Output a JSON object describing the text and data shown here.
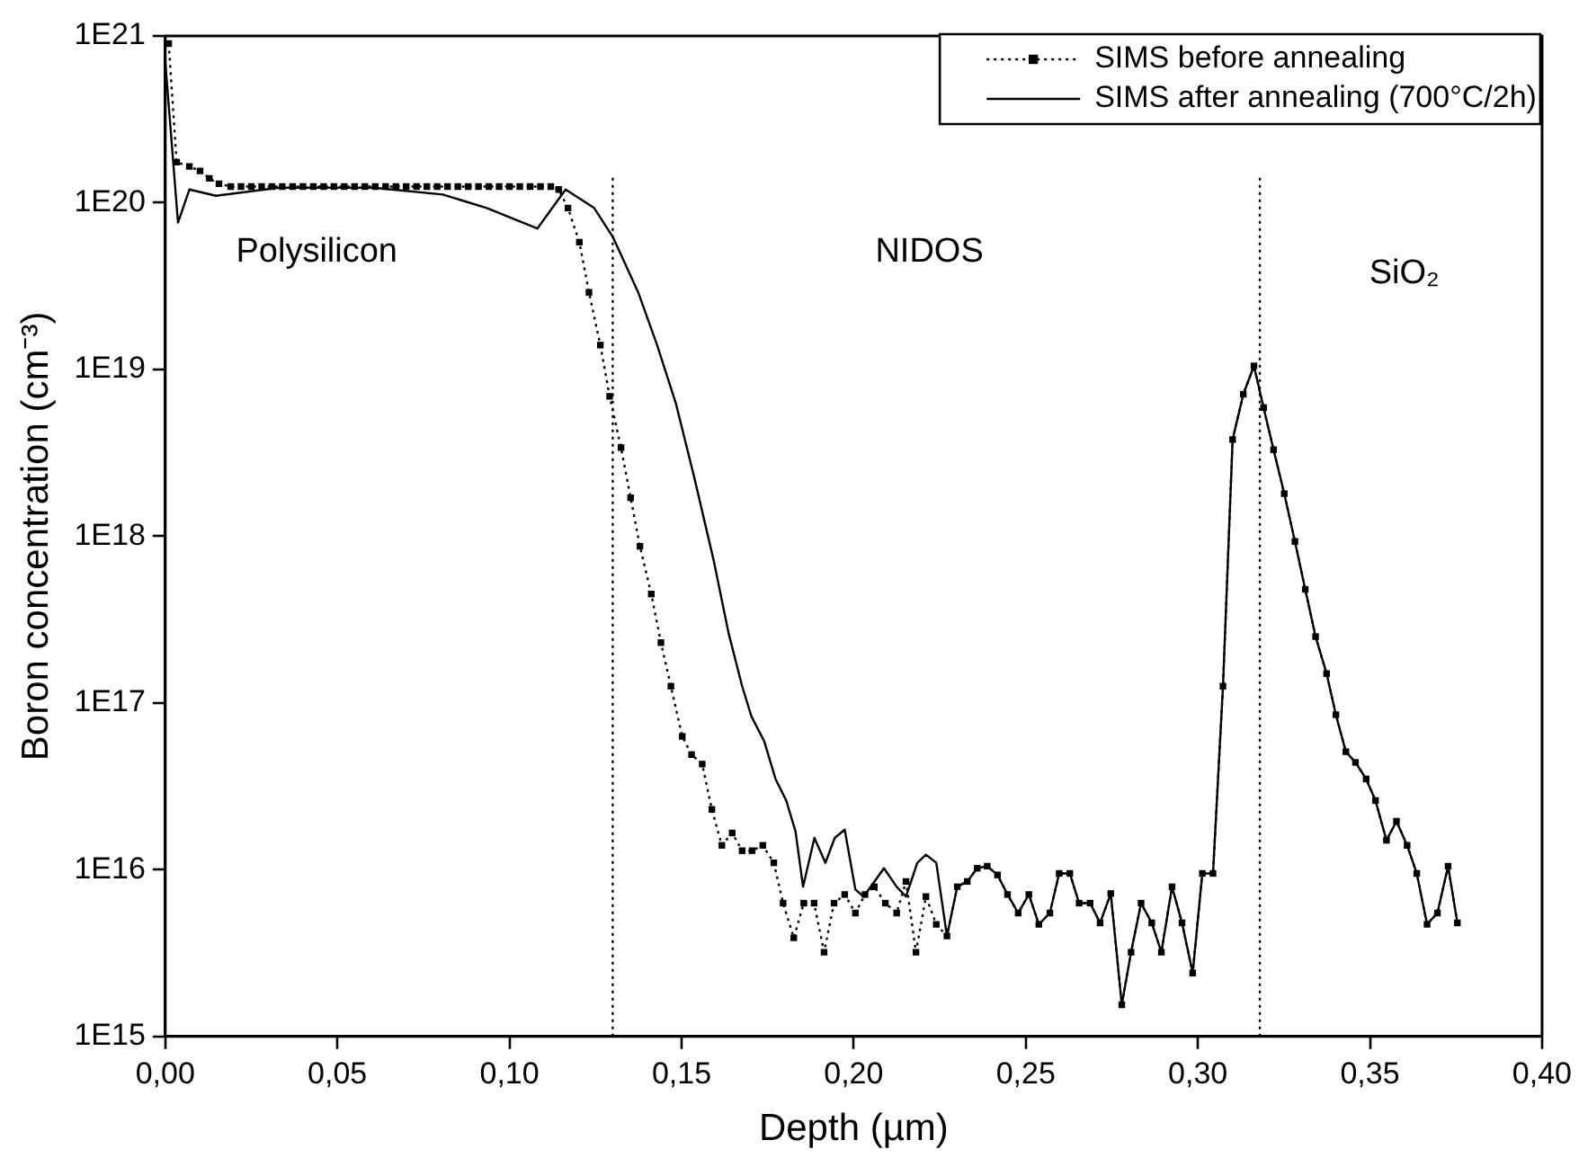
{
  "chart_data": {
    "type": "line",
    "xlabel": "Depth (µm)",
    "ylabel": "Boron concentration (cm⁻³)",
    "log": "y",
    "grid": false,
    "legend": "top right",
    "xlim": [
      0,
      0.4
    ],
    "xticks": [
      {
        "value": 0,
        "label": "0,00"
      },
      {
        "value": 0.05,
        "label": "0,05"
      },
      {
        "value": 0.1,
        "label": "0,10"
      },
      {
        "value": 0.15,
        "label": "0,15"
      },
      {
        "value": 0.2,
        "label": "0,20"
      },
      {
        "value": 0.25,
        "label": "0,25"
      },
      {
        "value": 0.3,
        "label": "0,30"
      },
      {
        "value": 0.35,
        "label": "0,35"
      },
      {
        "value": 0.4,
        "label": "0,40"
      }
    ],
    "ylim": [
      1000000000000000.0,
      1e+21
    ],
    "yticks": [
      {
        "value": 1000000000000000.0,
        "label": "1E15"
      },
      {
        "value": 1e+16,
        "label": "1E16"
      },
      {
        "value": 1e+17,
        "label": "1E17"
      },
      {
        "value": 1e+18,
        "label": "1E18"
      },
      {
        "value": 1e+19,
        "label": "1E19"
      },
      {
        "value": 1e+20,
        "label": "1E20"
      },
      {
        "value": 1e+21,
        "label": "1E21"
      }
    ],
    "ref_lines": [
      {
        "axis": "x",
        "value": 0.13,
        "line_style": "dotted",
        "color": "#000000"
      },
      {
        "axis": "x",
        "value": 0.318,
        "line_style": "dotted",
        "color": "#000000"
      }
    ],
    "annotations": [
      "Polysilicon",
      "NIDOS",
      "SiO₂"
    ],
    "series": [
      {
        "name": "SIMS before annealing",
        "color": "#000000",
        "marker": "square",
        "line_style": "dotted",
        "x": [
          0.001,
          0.0033,
          0.007,
          0.0101,
          0.0128,
          0.0156,
          0.019,
          0.022,
          0.025,
          0.028,
          0.031,
          0.034,
          0.037,
          0.04,
          0.043,
          0.046,
          0.049,
          0.052,
          0.055,
          0.058,
          0.061,
          0.064,
          0.067,
          0.07,
          0.073,
          0.076,
          0.079,
          0.082,
          0.085,
          0.088,
          0.091,
          0.094,
          0.097,
          0.1,
          0.103,
          0.106,
          0.109,
          0.112,
          0.1143,
          0.117,
          0.1203,
          0.1231,
          0.1264,
          0.1291,
          0.1324,
          0.1352,
          0.1379,
          0.1412,
          0.144,
          0.1469,
          0.1502,
          0.1529,
          0.156,
          0.1588,
          0.1617,
          0.1647,
          0.1676,
          0.1705,
          0.1736,
          0.1768,
          0.1795,
          0.1826,
          0.1855,
          0.1885,
          0.1914,
          0.1943,
          0.1974,
          0.2005,
          0.2033,
          0.206,
          0.2092,
          0.2125,
          0.2152,
          0.2181,
          0.221,
          0.224,
          0.2271,
          0.2301,
          0.233,
          0.2359,
          0.2388,
          0.2418,
          0.2447,
          0.2478,
          0.2509,
          0.2538,
          0.257,
          0.2597,
          0.2628,
          0.2655,
          0.2687,
          0.2716,
          0.2747,
          0.2779,
          0.2806,
          0.2835,
          0.2866,
          0.2894,
          0.2925,
          0.2954,
          0.2985,
          0.3013,
          0.3044,
          0.3073,
          0.3101,
          0.3132,
          0.3163,
          0.3191,
          0.322,
          0.3251,
          0.3282,
          0.3312,
          0.3342,
          0.3374,
          0.3401,
          0.343,
          0.3458,
          0.3489,
          0.3516,
          0.3548,
          0.3577,
          0.3608,
          0.3636,
          0.3666,
          0.3696,
          0.3727,
          0.3754
        ],
        "values": [
          9e+20,
          1.75e+20,
          1.65e+20,
          1.55e+20,
          1.4e+20,
          1.3e+20,
          1.25e+20,
          1.25e+20,
          1.25e+20,
          1.25e+20,
          1.25e+20,
          1.25e+20,
          1.25e+20,
          1.25e+20,
          1.25e+20,
          1.25e+20,
          1.25e+20,
          1.25e+20,
          1.25e+20,
          1.25e+20,
          1.25e+20,
          1.25e+20,
          1.25e+20,
          1.25e+20,
          1.25e+20,
          1.25e+20,
          1.25e+20,
          1.25e+20,
          1.25e+20,
          1.25e+20,
          1.25e+20,
          1.25e+20,
          1.25e+20,
          1.25e+20,
          1.25e+20,
          1.25e+20,
          1.25e+20,
          1.25e+20,
          1.2e+20,
          9.3e+19,
          5.8e+19,
          2.9e+19,
          1.4e+19,
          6.9e+18,
          3.4e+18,
          1.7e+18,
          8.7e+17,
          4.5e+17,
          2.3e+17,
          1.26e+17,
          6.3e+16,
          4.9e+16,
          4.3e+16,
          2.3e+16,
          1.4e+16,
          1.66e+16,
          1.3e+16,
          1.3e+16,
          1.4e+16,
          1.1e+16,
          6300000000000000.0,
          3900000000000000.0,
          6300000000000000.0,
          6300000000000000.0,
          3200000000000000.0,
          6300000000000000.0,
          7100000000000000.0,
          5500000000000000.0,
          7100000000000000.0,
          7900000000000000.0,
          6300000000000000.0,
          5500000000000000.0,
          8500000000000000.0,
          3200000000000000.0,
          6900000000000000.0,
          4700000000000000.0,
          4000000000000000.0,
          7900000000000000.0,
          8500000000000000.0,
          1.02e+16,
          1.05e+16,
          9300000000000000.0,
          7100000000000000.0,
          5500000000000000.0,
          7100000000000000.0,
          4700000000000000.0,
          5500000000000000.0,
          9500000000000000.0,
          9500000000000000.0,
          6300000000000000.0,
          6300000000000000.0,
          4800000000000000.0,
          7200000000000000.0,
          1550000000000000.0,
          3200000000000000.0,
          6300000000000000.0,
          4800000000000000.0,
          3200000000000000.0,
          7900000000000000.0,
          4800000000000000.0,
          2400000000000000.0,
          9500000000000000.0,
          9500000000000000.0,
          1.26e+17,
          3.8e+18,
          7.1e+18,
          1.05e+19,
          5.9e+18,
          3.3e+18,
          1.8e+18,
          9.3e+17,
          4.8e+17,
          2.5e+17,
          1.5e+17,
          8.5e+16,
          5.1e+16,
          4.4e+16,
          3.5e+16,
          2.6e+16,
          1.5e+16,
          1.95e+16,
          1.4e+16,
          9500000000000000.0,
          4700000000000000.0,
          5500000000000000.0,
          1.05e+16,
          4800000000000000.0
        ]
      },
      {
        "name": "SIMS after annealing (700°C/2h)",
        "color": "#000000",
        "marker": "none",
        "line_style": "solid",
        "x": [
          0,
          0.0037,
          0.007,
          0.0147,
          0.033,
          0.0604,
          0.0806,
          0.0934,
          0.1081,
          0.1163,
          0.1246,
          0.1301,
          0.1374,
          0.1429,
          0.1484,
          0.1538,
          0.1593,
          0.1637,
          0.1676,
          0.1703,
          0.174,
          0.1773,
          0.1804,
          0.1831,
          0.1853,
          0.1886,
          0.1918,
          0.1945,
          0.1974,
          0.2005,
          0.2029,
          0.2088,
          0.2125,
          0.2152,
          0.2185,
          0.221,
          0.224,
          0.2271,
          0.2301,
          0.233,
          0.2359,
          0.2388,
          0.2418,
          0.2447,
          0.2478,
          0.2509,
          0.2538,
          0.257,
          0.2597,
          0.2628,
          0.2655,
          0.2687,
          0.2716,
          0.2747,
          0.2779,
          0.2806,
          0.2835,
          0.2866,
          0.2894,
          0.2925,
          0.2954,
          0.2985,
          0.3013,
          0.3044,
          0.3073,
          0.3101,
          0.3132,
          0.3163,
          0.3191,
          0.322,
          0.3251,
          0.3282,
          0.3312,
          0.3342,
          0.3374,
          0.3401,
          0.343,
          0.3458,
          0.3489,
          0.3516,
          0.3548,
          0.3577,
          0.3608,
          0.3636,
          0.3666,
          0.3696,
          0.3727,
          0.3754
        ],
        "values": [
          7e+20,
          7.6e+19,
          1.2e+20,
          1.1e+20,
          1.23e+20,
          1.23e+20,
          1.12e+20,
          9.3e+19,
          7e+19,
          1.2e+20,
          9.3e+19,
          6.2e+19,
          2.9e+19,
          1.4e+19,
          6.2e+18,
          2.2e+18,
          7.2e+17,
          2.6e+17,
          1.26e+17,
          8.3e+16,
          5.9e+16,
          3.5e+16,
          2.6e+16,
          1.7e+16,
          7900000000000000.0,
          1.55e+16,
          1.1e+16,
          1.55e+16,
          1.74e+16,
          7600000000000000.0,
          6900000000000000.0,
          1.02e+16,
          7900000000000000.0,
          6900000000000000.0,
          1.1e+16,
          1.23e+16,
          1.1e+16,
          4000000000000000.0,
          7900000000000000.0,
          8500000000000000.0,
          1.02e+16,
          1.05e+16,
          9300000000000000.0,
          7100000000000000.0,
          5500000000000000.0,
          7100000000000000.0,
          4700000000000000.0,
          5500000000000000.0,
          9500000000000000.0,
          9500000000000000.0,
          6300000000000000.0,
          6300000000000000.0,
          4800000000000000.0,
          7200000000000000.0,
          1550000000000000.0,
          3200000000000000.0,
          6300000000000000.0,
          4800000000000000.0,
          3200000000000000.0,
          7900000000000000.0,
          4800000000000000.0,
          2400000000000000.0,
          9500000000000000.0,
          9500000000000000.0,
          1.26e+17,
          3.8e+18,
          7.1e+18,
          1.05e+19,
          5.9e+18,
          3.3e+18,
          1.8e+18,
          9.3e+17,
          4.8e+17,
          2.5e+17,
          1.5e+17,
          8.5e+16,
          5.1e+16,
          4.4e+16,
          3.5e+16,
          2.6e+16,
          1.5e+16,
          1.95e+16,
          1.4e+16,
          9500000000000000.0,
          4700000000000000.0,
          5500000000000000.0,
          1.05e+16,
          4800000000000000.0
        ]
      }
    ]
  }
}
